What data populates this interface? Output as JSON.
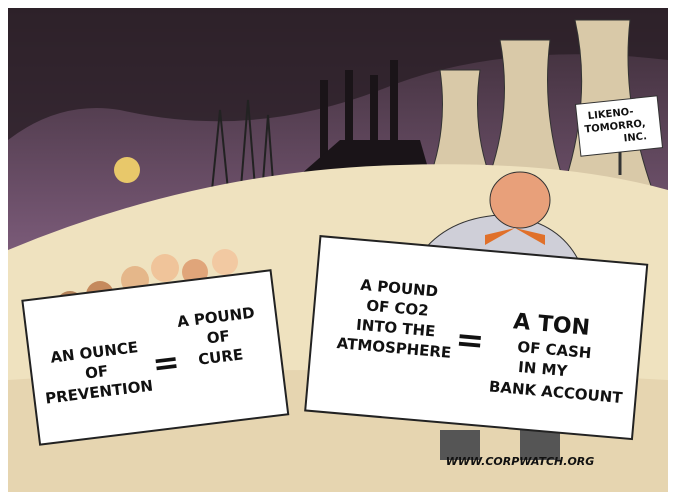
{
  "company_sign": [
    "LIKENO-",
    "TOMORRO,",
    "INC."
  ],
  "left_sign": {
    "left": [
      "AN OUNCE",
      "OF",
      "PREVENTION"
    ],
    "equals": "=",
    "right": [
      "A POUND",
      "OF",
      "CURE"
    ]
  },
  "right_sign": {
    "left": [
      "A POUND",
      "OF CO2",
      "INTO THE",
      "ATMOSPHERE"
    ],
    "equals": "=",
    "right": [
      "A TON",
      "OF CASH",
      "IN MY",
      "BANK ACCOUNT"
    ]
  },
  "website": "WWW.CORPWATCH.ORG"
}
